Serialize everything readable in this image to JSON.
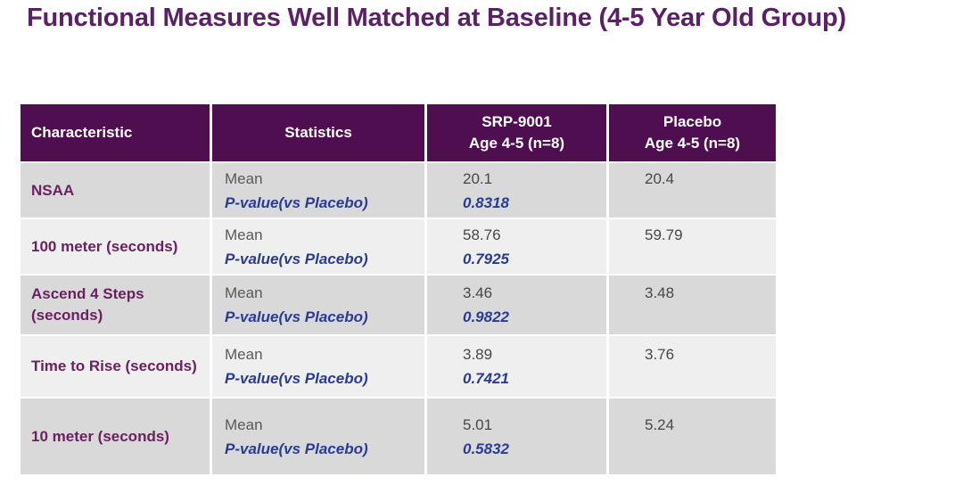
{
  "slide": {
    "title": "Functional Measures Well Matched at Baseline (4-5 Year Old Group)"
  },
  "table": {
    "header": {
      "characteristic": "Characteristic",
      "statistics": "Statistics",
      "srp": "SRP-9001\nAge 4-5 (n=8)",
      "placebo": "Placebo\nAge 4-5 (n=8)"
    },
    "stat_labels": {
      "mean": "Mean",
      "pvalue": "P-value(vs Placebo)"
    },
    "rows": [
      {
        "characteristic": "NSAA",
        "srp_mean": "20.1",
        "srp_pvalue": "0.8318",
        "placebo_mean": "20.4"
      },
      {
        "characteristic": "100 meter (seconds)",
        "srp_mean": "58.76",
        "srp_pvalue": "0.7925",
        "placebo_mean": "59.79"
      },
      {
        "characteristic": "Ascend 4 Steps\n(seconds)",
        "srp_mean": "3.46",
        "srp_pvalue": "0.9822",
        "placebo_mean": "3.48"
      },
      {
        "characteristic": "Time to Rise (seconds)",
        "srp_mean": "3.89",
        "srp_pvalue": "0.7421",
        "placebo_mean": "3.76"
      },
      {
        "characteristic": "10 meter (seconds)",
        "srp_mean": "5.01",
        "srp_pvalue": "0.5832",
        "placebo_mean": "5.24"
      }
    ]
  },
  "colors": {
    "title_color": "#5A2166",
    "header_bg": "#4F0E50",
    "header_text": "#FFFFFF",
    "label_color": "#6B2161",
    "pvalue_color": "#2A3B94",
    "mean_text": "#595959",
    "value_text": "#474747",
    "row_dark": "#D9D9D9",
    "row_light": "#EFEFEF"
  }
}
